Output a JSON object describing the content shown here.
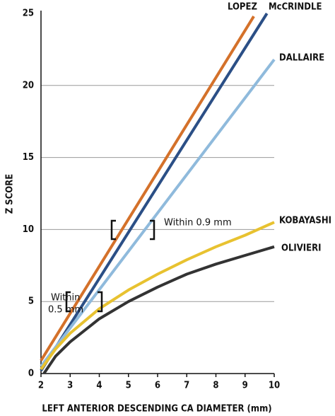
{
  "chart_data": {
    "type": "line",
    "y_label": "Z SCORE",
    "x_label": "LEFT ANTERIOR DESCENDING CA DIAMETER (mm)",
    "xlim": [
      2,
      10
    ],
    "ylim": [
      0,
      25
    ],
    "xticks": [
      2,
      3,
      4,
      5,
      6,
      7,
      8,
      9,
      10
    ],
    "yticks": [
      0,
      5,
      10,
      15,
      20,
      25
    ],
    "grid": true,
    "series": [
      {
        "name": "LOPEZ",
        "color": "#d4712a",
        "x": [
          2,
          9.3
        ],
        "values": [
          0.9,
          24.8
        ]
      },
      {
        "name": "McCRINDLE",
        "color": "#2b4f86",
        "x": [
          2,
          9.75
        ],
        "values": [
          0.2,
          25
        ]
      },
      {
        "name": "DALLAIRE",
        "color": "#8fbadc",
        "x": [
          2,
          10
        ],
        "values": [
          0.5,
          21.8
        ]
      },
      {
        "name": "KOBAYASHI",
        "color": "#e8c230",
        "x": [
          2,
          2.5,
          3,
          4,
          5,
          6,
          7,
          8,
          9,
          10
        ],
        "values": [
          0.3,
          1.7,
          2.8,
          4.5,
          5.8,
          6.9,
          7.9,
          8.8,
          9.6,
          10.5
        ]
      },
      {
        "name": "OLIVIERI",
        "color": "#333333",
        "x": [
          2.1,
          2.5,
          3,
          4,
          5,
          6,
          7,
          8,
          9,
          10
        ],
        "values": [
          0,
          1.2,
          2.2,
          3.8,
          5.0,
          6.0,
          6.9,
          7.6,
          8.2,
          8.8
        ]
      }
    ],
    "annotations": [
      "Within 0.9 mm",
      "Within",
      "0.5 mm"
    ]
  }
}
